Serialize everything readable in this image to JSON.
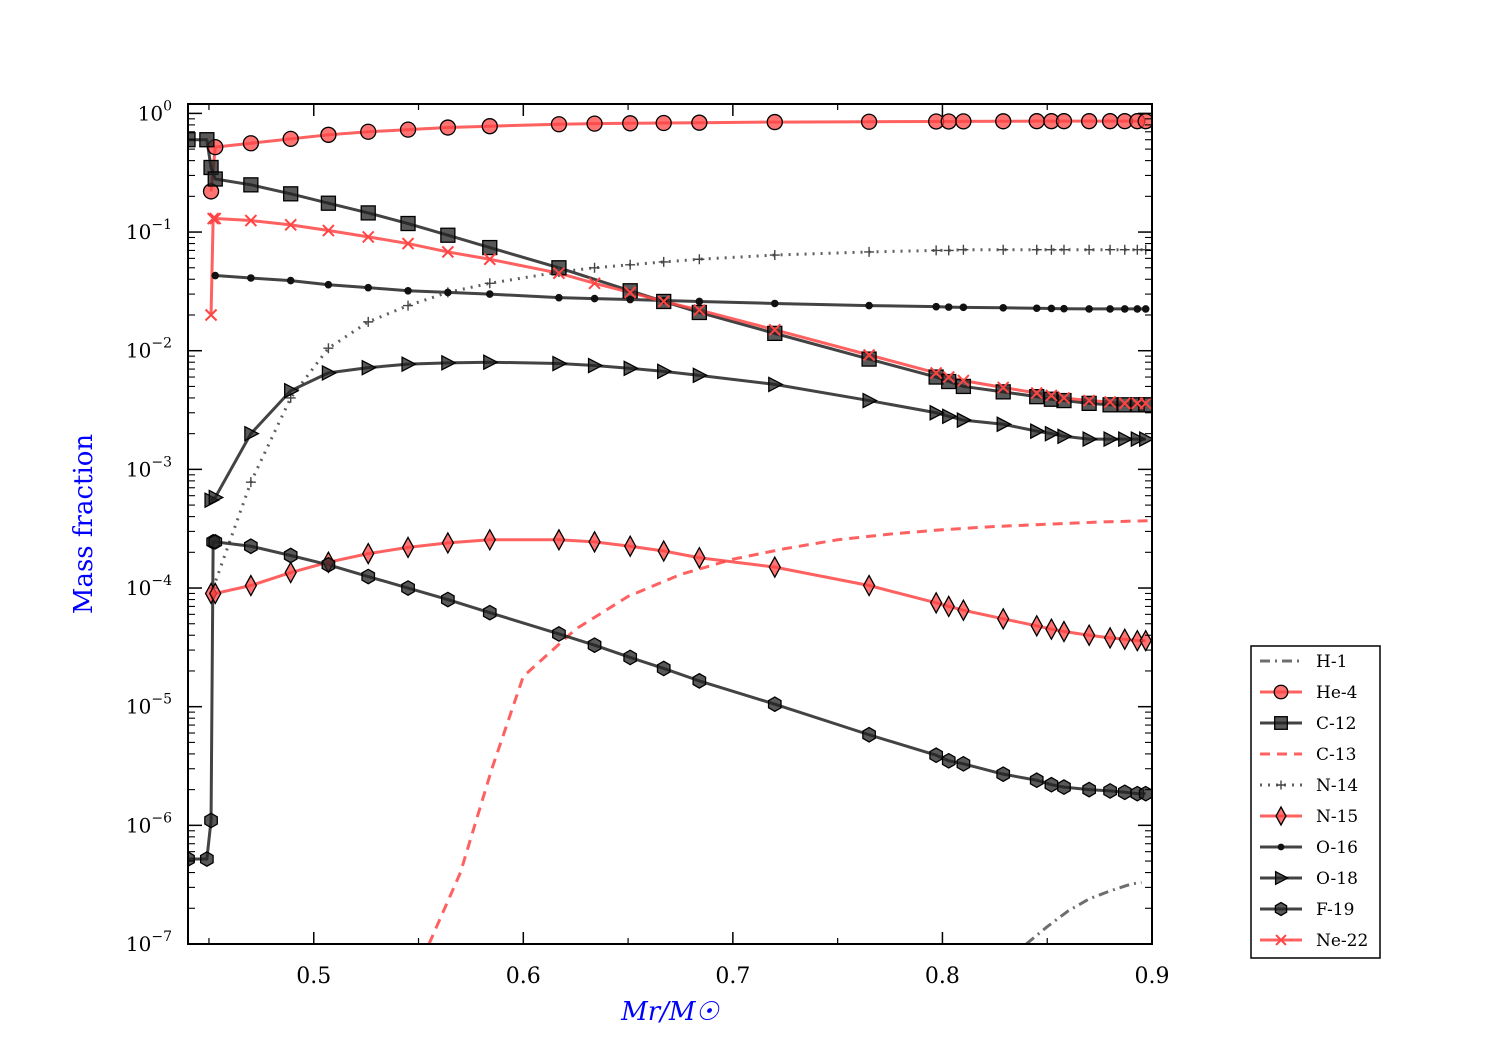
{
  "chart_data": {
    "type": "line",
    "title": "",
    "xlabel": "Mr/M☉",
    "ylabel": "Mass fraction",
    "xscale": "linear",
    "yscale": "log",
    "xlim": [
      0.44,
      0.9
    ],
    "ylim": [
      1e-07,
      1.2
    ],
    "xticks": [
      0.5,
      0.6,
      0.7,
      0.8,
      0.9
    ],
    "xtick_labels": [
      "0.5",
      "0.6",
      "0.7",
      "0.8",
      "0.9"
    ],
    "yticks": [
      {
        "value": 1e-07,
        "base": "10",
        "exp": "−7"
      },
      {
        "value": 1e-06,
        "base": "10",
        "exp": "−6"
      },
      {
        "value": 1e-05,
        "base": "10",
        "exp": "−5"
      },
      {
        "value": 0.0001,
        "base": "10",
        "exp": "−4"
      },
      {
        "value": 0.001,
        "base": "10",
        "exp": "−3"
      },
      {
        "value": 0.01,
        "base": "10",
        "exp": "−2"
      },
      {
        "value": 0.1,
        "base": "10",
        "exp": "−1"
      },
      {
        "value": 1,
        "base": "10",
        "exp": "0"
      }
    ],
    "legend_position": "outside-right-bottom",
    "series": [
      {
        "name": "H-1",
        "color": "#555555",
        "dash": "dashdot",
        "marker": "none",
        "x": [
          0.84,
          0.85,
          0.86,
          0.87,
          0.88,
          0.89,
          0.895
        ],
        "y": [
          1e-07,
          1.4e-07,
          1.9e-07,
          2.4e-07,
          2.8e-07,
          3.2e-07,
          3.3e-07
        ]
      },
      {
        "name": "He-4",
        "color": "#ff4444",
        "dash": "solid",
        "marker": "circle",
        "x": [
          0.451,
          0.453,
          0.47,
          0.489,
          0.507,
          0.526,
          0.545,
          0.564,
          0.584,
          0.617,
          0.634,
          0.651,
          0.667,
          0.684,
          0.72,
          0.765,
          0.797,
          0.803,
          0.81,
          0.829,
          0.845,
          0.852,
          0.858,
          0.87,
          0.88,
          0.887,
          0.893,
          0.897
        ],
        "y": [
          0.22,
          0.52,
          0.56,
          0.61,
          0.66,
          0.7,
          0.73,
          0.76,
          0.78,
          0.81,
          0.82,
          0.825,
          0.83,
          0.835,
          0.845,
          0.85,
          0.855,
          0.855,
          0.857,
          0.858,
          0.86,
          0.86,
          0.86,
          0.86,
          0.86,
          0.86,
          0.86,
          0.86
        ]
      },
      {
        "name": "C-12",
        "color": "#222222",
        "dash": "solid",
        "marker": "square",
        "x": [
          0.44,
          0.449,
          0.451,
          0.453,
          0.47,
          0.489,
          0.507,
          0.526,
          0.545,
          0.564,
          0.584,
          0.617,
          0.651,
          0.667,
          0.684,
          0.72,
          0.765,
          0.797,
          0.803,
          0.81,
          0.829,
          0.845,
          0.852,
          0.858,
          0.87,
          0.88,
          0.887,
          0.893,
          0.897
        ],
        "y": [
          0.6,
          0.6,
          0.35,
          0.28,
          0.25,
          0.21,
          0.175,
          0.145,
          0.118,
          0.094,
          0.074,
          0.05,
          0.032,
          0.026,
          0.021,
          0.014,
          0.0085,
          0.006,
          0.0055,
          0.005,
          0.0045,
          0.0041,
          0.0039,
          0.0038,
          0.0036,
          0.0035,
          0.0035,
          0.0035,
          0.0035
        ]
      },
      {
        "name": "C-13",
        "color": "#ff4444",
        "dash": "dashed",
        "marker": "none",
        "x": [
          0.555,
          0.57,
          0.585,
          0.6,
          0.625,
          0.65,
          0.675,
          0.7,
          0.725,
          0.75,
          0.775,
          0.8,
          0.825,
          0.85,
          0.875,
          0.9
        ],
        "y": [
          1e-07,
          4e-07,
          3e-06,
          1.8e-05,
          4.5e-05,
          8.5e-05,
          0.00013,
          0.000175,
          0.000215,
          0.000255,
          0.000285,
          0.00031,
          0.00033,
          0.000345,
          0.00036,
          0.00037
        ]
      },
      {
        "name": "N-14",
        "color": "#444444",
        "dash": "dotted",
        "marker": "plus",
        "x": [
          0.452,
          0.47,
          0.489,
          0.507,
          0.526,
          0.545,
          0.564,
          0.584,
          0.617,
          0.634,
          0.651,
          0.667,
          0.684,
          0.72,
          0.765,
          0.797,
          0.803,
          0.81,
          0.829,
          0.845,
          0.852,
          0.858,
          0.87,
          0.88,
          0.887,
          0.893,
          0.897
        ],
        "y": [
          0.0001,
          0.00078,
          0.004,
          0.0105,
          0.0175,
          0.024,
          0.031,
          0.037,
          0.046,
          0.05,
          0.053,
          0.056,
          0.059,
          0.064,
          0.068,
          0.07,
          0.07,
          0.071,
          0.071,
          0.071,
          0.071,
          0.071,
          0.071,
          0.071,
          0.071,
          0.071,
          0.071
        ]
      },
      {
        "name": "N-15",
        "color": "#ff4444",
        "dash": "solid",
        "marker": "diamond",
        "x": [
          0.451,
          0.453,
          0.47,
          0.489,
          0.507,
          0.526,
          0.545,
          0.564,
          0.584,
          0.617,
          0.634,
          0.651,
          0.667,
          0.684,
          0.72,
          0.765,
          0.797,
          0.803,
          0.81,
          0.829,
          0.845,
          0.852,
          0.858,
          0.87,
          0.88,
          0.887,
          0.893,
          0.897
        ],
        "y": [
          9e-05,
          9e-05,
          0.000105,
          0.000135,
          0.000165,
          0.000195,
          0.00022,
          0.00024,
          0.000255,
          0.000255,
          0.000245,
          0.000225,
          0.000205,
          0.00018,
          0.00015,
          0.000105,
          7.5e-05,
          7e-05,
          6.5e-05,
          5.5e-05,
          4.8e-05,
          4.5e-05,
          4.3e-05,
          4e-05,
          3.8e-05,
          3.7e-05,
          3.6e-05,
          3.6e-05
        ]
      },
      {
        "name": "O-16",
        "color": "#222222",
        "dash": "solid",
        "marker": "dot",
        "x": [
          0.453,
          0.47,
          0.489,
          0.507,
          0.526,
          0.545,
          0.564,
          0.584,
          0.617,
          0.634,
          0.651,
          0.667,
          0.684,
          0.72,
          0.765,
          0.797,
          0.803,
          0.81,
          0.829,
          0.845,
          0.852,
          0.858,
          0.87,
          0.88,
          0.887,
          0.893,
          0.897
        ],
        "y": [
          0.043,
          0.041,
          0.039,
          0.036,
          0.034,
          0.032,
          0.031,
          0.03,
          0.028,
          0.0275,
          0.027,
          0.0265,
          0.026,
          0.025,
          0.024,
          0.0235,
          0.0233,
          0.0232,
          0.023,
          0.0228,
          0.0227,
          0.0226,
          0.0225,
          0.0225,
          0.0225,
          0.0225,
          0.0225
        ]
      },
      {
        "name": "O-18",
        "color": "#222222",
        "dash": "solid",
        "marker": "triangle-right",
        "x": [
          0.451,
          0.453,
          0.47,
          0.489,
          0.507,
          0.526,
          0.545,
          0.564,
          0.584,
          0.617,
          0.634,
          0.651,
          0.667,
          0.684,
          0.72,
          0.765,
          0.797,
          0.803,
          0.81,
          0.829,
          0.845,
          0.852,
          0.858,
          0.87,
          0.88,
          0.887,
          0.893,
          0.897
        ],
        "y": [
          0.00055,
          0.00058,
          0.002,
          0.0046,
          0.0065,
          0.0072,
          0.0077,
          0.0079,
          0.008,
          0.0078,
          0.0075,
          0.0071,
          0.0067,
          0.0062,
          0.0052,
          0.0038,
          0.003,
          0.0028,
          0.0026,
          0.0024,
          0.0021,
          0.002,
          0.0019,
          0.0018,
          0.0018,
          0.0018,
          0.0018,
          0.0018
        ]
      },
      {
        "name": "F-19",
        "color": "#222222",
        "dash": "solid",
        "marker": "hexagon",
        "x": [
          0.44,
          0.449,
          0.451,
          0.452,
          0.453,
          0.47,
          0.489,
          0.507,
          0.526,
          0.545,
          0.564,
          0.584,
          0.617,
          0.634,
          0.651,
          0.667,
          0.684,
          0.72,
          0.765,
          0.797,
          0.803,
          0.81,
          0.829,
          0.845,
          0.852,
          0.858,
          0.87,
          0.88,
          0.887,
          0.893,
          0.897
        ],
        "y": [
          5.2e-07,
          5.2e-07,
          1.1e-06,
          0.000245,
          0.000245,
          0.000225,
          0.000188,
          0.000157,
          0.000125,
          0.0001,
          8e-05,
          6.2e-05,
          4.1e-05,
          3.3e-05,
          2.6e-05,
          2.1e-05,
          1.65e-05,
          1.05e-05,
          5.8e-06,
          3.9e-06,
          3.5e-06,
          3.3e-06,
          2.7e-06,
          2.4e-06,
          2.2e-06,
          2.1e-06,
          2e-06,
          1.95e-06,
          1.9e-06,
          1.85e-06,
          1.85e-06
        ]
      },
      {
        "name": "Ne-22",
        "color": "#ff4444",
        "dash": "solid",
        "marker": "x",
        "x": [
          0.451,
          0.452,
          0.453,
          0.47,
          0.489,
          0.507,
          0.526,
          0.545,
          0.564,
          0.584,
          0.617,
          0.634,
          0.651,
          0.667,
          0.684,
          0.72,
          0.765,
          0.797,
          0.803,
          0.81,
          0.829,
          0.845,
          0.852,
          0.858,
          0.87,
          0.88,
          0.887,
          0.893,
          0.897
        ],
        "y": [
          0.02,
          0.13,
          0.13,
          0.125,
          0.115,
          0.103,
          0.091,
          0.08,
          0.068,
          0.059,
          0.045,
          0.037,
          0.031,
          0.026,
          0.022,
          0.015,
          0.0092,
          0.0065,
          0.006,
          0.0056,
          0.0049,
          0.0044,
          0.0042,
          0.004,
          0.0038,
          0.0037,
          0.0036,
          0.0036,
          0.0036
        ]
      }
    ]
  }
}
